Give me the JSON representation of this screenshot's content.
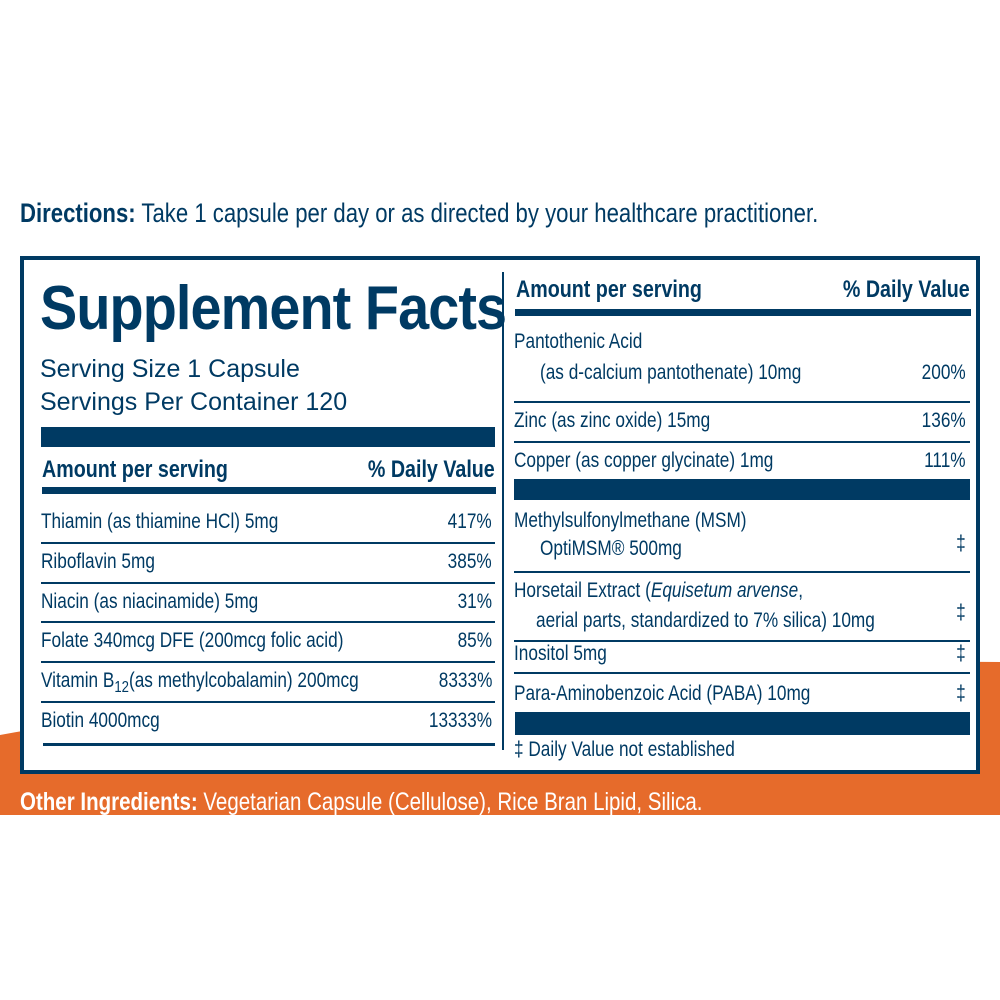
{
  "colors": {
    "navy": "#003a63",
    "orange": "#e66b2b"
  },
  "directions": {
    "label": "Directions:",
    "text": " Take 1 capsule per day or as directed by your healthcare practitioner."
  },
  "title": "Supplement Facts",
  "serving_size": "Serving Size 1 Capsule",
  "servings_per_container": "Servings Per Container 120",
  "header": {
    "amount": "Amount per serving",
    "dv": "% Daily Value"
  },
  "left_rows": [
    {
      "name": "Thiamin (as thiamine HCl)  5mg",
      "dv": "417%"
    },
    {
      "name": "Riboflavin 5mg",
      "dv": "385%"
    },
    {
      "name": "Niacin (as niacinamide) 5mg",
      "dv": "31%"
    },
    {
      "name": "Folate 340mcg DFE (200mcg folic acid)",
      "dv": "85%"
    },
    {
      "name": "Vitamin B",
      "sub": "12",
      "name_rest": "(as methylcobalamin) 200mcg",
      "dv": "8333%"
    },
    {
      "name": "Biotin 4000mcg",
      "dv": "13333%"
    }
  ],
  "right_rows": [
    {
      "name": "Pantothenic Acid",
      "line2": "(as d-calcium pantothenate) 10mg",
      "dv": "200%"
    },
    {
      "name": "Zinc (as zinc oxide) 15mg",
      "dv": "136%"
    },
    {
      "name": "Copper (as copper glycinate) 1mg",
      "dv": "111%"
    },
    {
      "name": "Methylsulfonylmethane (MSM)",
      "line2": "OptiMSM® 500mg",
      "dv": "‡"
    },
    {
      "name": "Horsetail Extract (",
      "italic": "Equisetum arvense",
      "name_rest": ",",
      "line2": "aerial parts, standardized to 7% silica) 10mg",
      "dv": "‡"
    },
    {
      "name": "Inositol 5mg",
      "dv": "‡"
    },
    {
      "name": "Para-Aminobenzoic Acid (PABA) 10mg",
      "dv": "‡"
    }
  ],
  "footnote": "‡ Daily Value not established",
  "other_ingredients": {
    "label": "Other Ingredients:",
    "text": " Vegetarian Capsule (Cellulose), Rice Bran Lipid, Silica."
  }
}
